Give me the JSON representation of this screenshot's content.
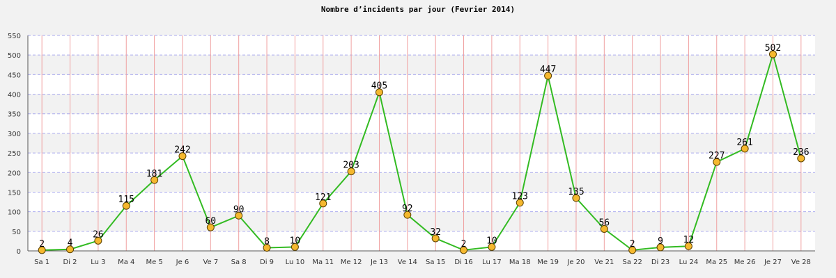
{
  "chart_data": {
    "type": "line",
    "title": "Nombre d’incidents par jour (Fevrier 2014)",
    "xlabel": "",
    "ylabel": "",
    "categories": [
      "Sa 1",
      "Di 2",
      "Lu 3",
      "Ma 4",
      "Me 5",
      "Je 6",
      "Ve 7",
      "Sa 8",
      "Di 9",
      "Lu 10",
      "Ma 11",
      "Me 12",
      "Je 13",
      "Ve 14",
      "Sa 15",
      "Di 16",
      "Lu 17",
      "Ma 18",
      "Me 19",
      "Je 20",
      "Ve 21",
      "Sa 22",
      "Di 23",
      "Lu 24",
      "Ma 25",
      "Me 26",
      "Je 27",
      "Ve 28"
    ],
    "series": [
      {
        "values": [
          2,
          4,
          26,
          115,
          181,
          242,
          60,
          90,
          8,
          10,
          121,
          203,
          405,
          92,
          32,
          2,
          10,
          123,
          447,
          135,
          56,
          2,
          9,
          12,
          227,
          261,
          502,
          236
        ]
      }
    ],
    "yticks": [
      0,
      50,
      100,
      150,
      200,
      250,
      300,
      350,
      400,
      450,
      500,
      550
    ],
    "ylim": [
      0,
      550
    ],
    "grid": true,
    "legend": "none",
    "colors": {
      "line": "#33bb22",
      "marker_fill": "#f5b82e",
      "marker_stroke": "#5a4000",
      "vgrid": "#f0a0a0",
      "hgrid": "#aaaaee",
      "band_light": "#ffffff",
      "band_dark": "#f2f2f2"
    }
  }
}
